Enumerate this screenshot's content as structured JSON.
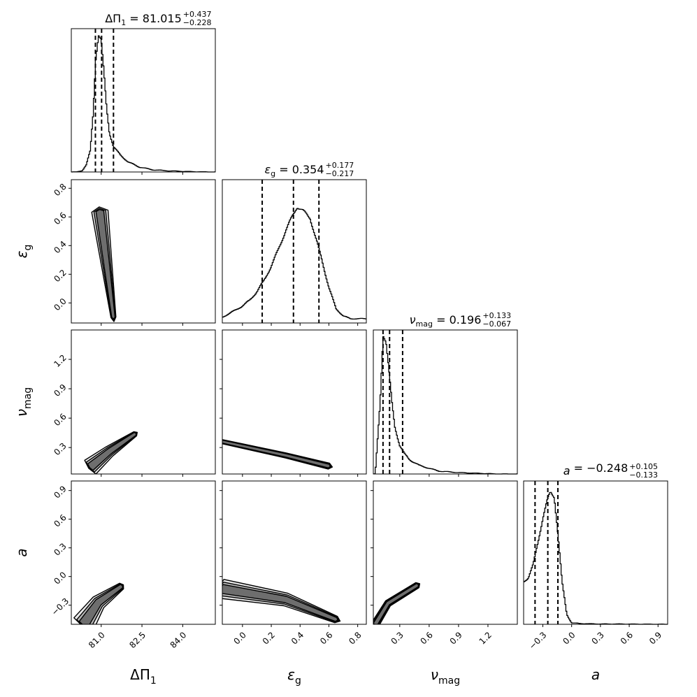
{
  "chart_data": {
    "type": "corner",
    "parameters": [
      {
        "key": "dpi",
        "axis_label_main": "ΔΠ",
        "axis_label_sub": "1",
        "title_main": "ΔΠ",
        "title_sub": "1",
        "title_value": "= 81.015",
        "title_plus": "+0.437",
        "title_minus": "−0.228",
        "median": 81.015,
        "q16": 80.787,
        "q84": 81.452,
        "range": [
          79.9,
          85.2
        ],
        "ticks": [
          "81.0",
          "82.5",
          "84.0"
        ],
        "tick_values": [
          81.0,
          82.5,
          84.0
        ]
      },
      {
        "key": "eps",
        "axis_label_main": "ε",
        "axis_label_sub": "g",
        "title_main": "ε",
        "title_sub": "g",
        "title_value": "= 0.354",
        "title_plus": "+0.177",
        "title_minus": "−0.217",
        "median": 0.354,
        "q16": 0.137,
        "q84": 0.531,
        "range": [
          -0.14,
          0.86
        ],
        "ticks": [
          "0.0",
          "0.2",
          "0.4",
          "0.6",
          "0.8"
        ],
        "tick_values": [
          0.0,
          0.2,
          0.4,
          0.6,
          0.8
        ]
      },
      {
        "key": "numag",
        "axis_label_main": "ν",
        "axis_label_sub": "mag",
        "title_main": "ν",
        "title_sub": "mag",
        "title_value": "= 0.196",
        "title_plus": "+0.133",
        "title_minus": "−0.067",
        "median": 0.196,
        "q16": 0.129,
        "q84": 0.329,
        "range": [
          0.03,
          1.5
        ],
        "ticks": [
          "0.3",
          "0.6",
          "0.9",
          "1.2"
        ],
        "tick_values": [
          0.3,
          0.6,
          0.9,
          1.2
        ]
      },
      {
        "key": "a",
        "axis_label_main": "a",
        "axis_label_sub": "",
        "title_main": "a",
        "title_sub": "",
        "title_value": "= −0.248",
        "title_plus": "+0.105",
        "title_minus": "−0.133",
        "median": -0.248,
        "q16": -0.381,
        "q84": -0.143,
        "range": [
          -0.5,
          1.0
        ],
        "ticks": [
          "−0.3",
          "0.0",
          "0.3",
          "0.6",
          "0.9"
        ],
        "tick_values": [
          -0.3,
          0.0,
          0.3,
          0.6,
          0.9
        ]
      }
    ],
    "histograms": [
      {
        "param": 0,
        "x": [
          80.1,
          80.3,
          80.45,
          80.6,
          80.7,
          80.8,
          80.9,
          81.0,
          81.1,
          81.2,
          81.3,
          81.45,
          81.7,
          82.0,
          82.4,
          82.9,
          83.5,
          84.2,
          85.0
        ],
        "y": [
          0.0,
          0.01,
          0.05,
          0.15,
          0.4,
          0.8,
          0.97,
          0.93,
          0.7,
          0.45,
          0.28,
          0.18,
          0.12,
          0.07,
          0.035,
          0.015,
          0.008,
          0.003,
          0.0
        ]
      },
      {
        "param": 1,
        "x": [
          -0.14,
          -0.05,
          0.0,
          0.05,
          0.1,
          0.15,
          0.2,
          0.25,
          0.3,
          0.35,
          0.38,
          0.42,
          0.47,
          0.5,
          0.55,
          0.6,
          0.65,
          0.7,
          0.75,
          0.8,
          0.86
        ],
        "y": [
          0.04,
          0.09,
          0.12,
          0.16,
          0.22,
          0.3,
          0.4,
          0.52,
          0.65,
          0.76,
          0.82,
          0.79,
          0.74,
          0.63,
          0.45,
          0.25,
          0.1,
          0.05,
          0.03,
          0.03,
          0.03
        ]
      },
      {
        "param": 2,
        "x": [
          0.05,
          0.1,
          0.13,
          0.16,
          0.19,
          0.22,
          0.25,
          0.3,
          0.35,
          0.4,
          0.5,
          0.6,
          0.7,
          0.9,
          1.1,
          1.3,
          1.5
        ],
        "y": [
          0.0,
          0.5,
          0.98,
          0.93,
          0.72,
          0.5,
          0.33,
          0.2,
          0.14,
          0.1,
          0.06,
          0.04,
          0.02,
          0.01,
          0.005,
          0.0,
          0.0
        ]
      },
      {
        "param": 3,
        "x": [
          -0.5,
          -0.45,
          -0.4,
          -0.35,
          -0.3,
          -0.25,
          -0.22,
          -0.18,
          -0.14,
          -0.1,
          -0.05,
          0.0,
          0.1,
          0.3,
          0.5,
          0.7,
          1.0
        ],
        "y": [
          0.3,
          0.33,
          0.42,
          0.58,
          0.75,
          0.88,
          0.93,
          0.9,
          0.62,
          0.3,
          0.07,
          0.01,
          0.005,
          0.002,
          0.002,
          0.001,
          0.0
        ]
      }
    ],
    "contours": [
      {
        "x_param": 0,
        "y_param": 1,
        "shape": "narrow-anticorrelated",
        "spine": [
          [
            80.95,
            0.64
          ],
          [
            81.2,
            0.27
          ],
          [
            81.45,
            -0.1
          ]
        ],
        "width": [
          0.1,
          0.02
        ]
      },
      {
        "x_param": 0,
        "y_param": 2,
        "shape": "narrow-correlated",
        "spine": [
          [
            80.6,
            0.1
          ],
          [
            81.3,
            0.26
          ],
          [
            82.25,
            0.44
          ]
        ],
        "width": [
          0.16,
          0.03
        ]
      },
      {
        "x_param": 1,
        "y_param": 2,
        "shape": "elongated-anticorrelated",
        "spine": [
          [
            -0.14,
            0.36
          ],
          [
            0.3,
            0.22
          ],
          [
            0.6,
            0.11
          ]
        ],
        "width": [
          0.02,
          0.04
        ]
      },
      {
        "x_param": 0,
        "y_param": 3,
        "shape": "banana",
        "spine": [
          [
            80.35,
            -0.5
          ],
          [
            80.9,
            -0.27
          ],
          [
            81.75,
            -0.1
          ]
        ],
        "width": [
          0.22,
          0.05
        ]
      },
      {
        "x_param": 1,
        "y_param": 3,
        "shape": "elongated",
        "spine": [
          [
            -0.14,
            -0.13
          ],
          [
            0.3,
            -0.24
          ],
          [
            0.65,
            -0.45
          ]
        ],
        "width": [
          0.18,
          0.05
        ]
      },
      {
        "x_param": 2,
        "y_param": 3,
        "shape": "banana",
        "spine": [
          [
            0.05,
            -0.5
          ],
          [
            0.18,
            -0.28
          ],
          [
            0.48,
            -0.09
          ]
        ],
        "width": [
          0.06,
          0.04
        ]
      }
    ]
  }
}
